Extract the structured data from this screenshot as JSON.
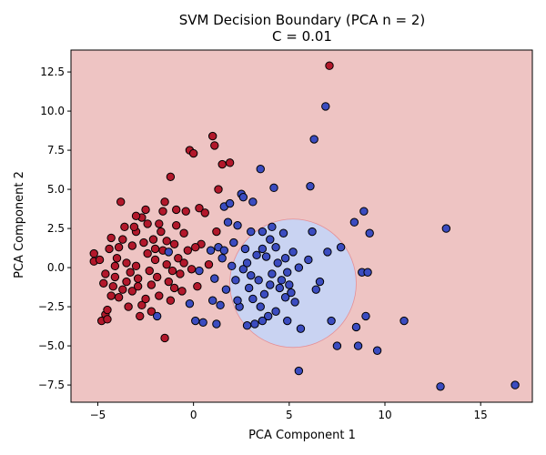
{
  "chart_data": {
    "type": "scatter",
    "title": [
      "SVM Decision Boundary (PCA n = 2)",
      "C = 0.01"
    ],
    "xlabel": "PCA Component 1",
    "ylabel": "PCA Component 2",
    "xlim": [
      -6.4,
      17.7
    ],
    "ylim": [
      -8.6,
      13.9
    ],
    "xticks": [
      -5,
      0,
      5,
      10,
      15
    ],
    "yticks": [
      -7.5,
      -5.0,
      -2.5,
      0.0,
      2.5,
      5.0,
      7.5,
      10.0,
      12.5
    ],
    "xtick_labels": [
      "−5",
      "0",
      "5",
      "10",
      "15"
    ],
    "ytick_labels": [
      "−7.5",
      "−5.0",
      "−2.5",
      "0.0",
      "2.5",
      "5.0",
      "7.5",
      "10.0",
      "12.5"
    ],
    "grid": false,
    "regions": [
      {
        "class": 0,
        "color": "#eec4c3",
        "extent": "background"
      },
      {
        "class": 1,
        "color": "#c9d3f2",
        "shape": "ellipse",
        "center": [
          5.2,
          -1.0
        ],
        "radius_x": 3.3,
        "radius_y": 4.1
      }
    ],
    "series": [
      {
        "class": 0,
        "color": "#b2182b",
        "edgecolor": "#000000",
        "points": [
          [
            -5.2,
            0.9
          ],
          [
            -5.2,
            0.4
          ],
          [
            -4.8,
            -3.4
          ],
          [
            -4.6,
            -3.0
          ],
          [
            -4.5,
            -3.3
          ],
          [
            -4.5,
            -2.7
          ],
          [
            -4.3,
            -1.8
          ],
          [
            -4.2,
            -1.2
          ],
          [
            -4.6,
            -0.4
          ],
          [
            -4.9,
            0.5
          ],
          [
            -4.0,
            0.6
          ],
          [
            -4.4,
            1.2
          ],
          [
            -4.1,
            -0.6
          ],
          [
            -3.9,
            -1.9
          ],
          [
            -4.3,
            1.9
          ],
          [
            -3.7,
            1.8
          ],
          [
            -3.6,
            2.6
          ],
          [
            -3.5,
            0.3
          ],
          [
            -3.5,
            -0.9
          ],
          [
            -3.4,
            -2.5
          ],
          [
            -3.2,
            -1.5
          ],
          [
            -3.9,
            1.3
          ],
          [
            -3.8,
            4.2
          ],
          [
            -3.2,
            1.4
          ],
          [
            -3.0,
            2.3
          ],
          [
            -3.0,
            0.1
          ],
          [
            -2.9,
            -1.2
          ],
          [
            -2.7,
            -2.4
          ],
          [
            -2.7,
            3.2
          ],
          [
            -2.5,
            3.7
          ],
          [
            -2.4,
            2.8
          ],
          [
            -2.4,
            0.9
          ],
          [
            -2.3,
            -0.2
          ],
          [
            -2.2,
            -1.1
          ],
          [
            -2.8,
            -3.1
          ],
          [
            -2.5,
            -2.0
          ],
          [
            -2.1,
            1.8
          ],
          [
            -2.0,
            0.5
          ],
          [
            -1.9,
            -0.6
          ],
          [
            -1.8,
            -1.8
          ],
          [
            -1.7,
            2.3
          ],
          [
            -1.6,
            1.1
          ],
          [
            -1.6,
            3.6
          ],
          [
            -1.5,
            4.2
          ],
          [
            -1.4,
            0.2
          ],
          [
            -1.3,
            -0.9
          ],
          [
            -1.2,
            -2.1
          ],
          [
            -1.5,
            -4.5
          ],
          [
            -1.2,
            5.8
          ],
          [
            -1.0,
            1.5
          ],
          [
            -0.9,
            2.7
          ],
          [
            -0.9,
            3.7
          ],
          [
            -0.8,
            0.6
          ],
          [
            -0.7,
            -0.4
          ],
          [
            -0.6,
            -1.5
          ],
          [
            -0.5,
            2.2
          ],
          [
            -0.4,
            3.6
          ],
          [
            -0.3,
            1.1
          ],
          [
            -0.2,
            7.5
          ],
          [
            0.0,
            7.3
          ],
          [
            -0.1,
            -0.1
          ],
          [
            0.2,
            -1.2
          ],
          [
            0.3,
            3.8
          ],
          [
            0.4,
            1.5
          ],
          [
            0.6,
            3.5
          ],
          [
            0.8,
            0.2
          ],
          [
            1.0,
            8.4
          ],
          [
            1.1,
            7.8
          ],
          [
            1.2,
            2.3
          ],
          [
            1.3,
            5.0
          ],
          [
            1.5,
            6.6
          ],
          [
            1.9,
            6.7
          ],
          [
            -4.1,
            0.1
          ],
          [
            -3.3,
            -0.3
          ],
          [
            -2.6,
            1.6
          ],
          [
            -1.8,
            2.8
          ],
          [
            -1.1,
            -0.2
          ],
          [
            -3.0,
            3.3
          ],
          [
            -2.2,
            -2.8
          ],
          [
            -0.5,
            0.3
          ],
          [
            0.1,
            1.3
          ],
          [
            -3.7,
            -1.4
          ],
          [
            -2.0,
            1.2
          ],
          [
            -1.0,
            -1.3
          ],
          [
            -4.7,
            -1.0
          ],
          [
            -3.1,
            2.6
          ],
          [
            -2.9,
            -0.7
          ],
          [
            -1.4,
            1.7
          ],
          [
            7.1,
            12.9
          ]
        ]
      },
      {
        "class": 1,
        "color": "#3b4cc0",
        "edgecolor": "#000000",
        "points": [
          [
            -1.9,
            -3.1
          ],
          [
            -1.3,
            1.0
          ],
          [
            -0.2,
            -2.3
          ],
          [
            0.1,
            -3.4
          ],
          [
            0.3,
            -0.2
          ],
          [
            0.5,
            -3.5
          ],
          [
            0.9,
            1.1
          ],
          [
            1.0,
            -2.1
          ],
          [
            1.1,
            -0.7
          ],
          [
            1.2,
            -3.6
          ],
          [
            1.3,
            1.3
          ],
          [
            1.4,
            -2.4
          ],
          [
            1.6,
            3.9
          ],
          [
            1.6,
            1.1
          ],
          [
            1.7,
            -1.4
          ],
          [
            1.8,
            2.9
          ],
          [
            1.9,
            4.1
          ],
          [
            2.0,
            0.1
          ],
          [
            2.1,
            1.6
          ],
          [
            2.2,
            -0.8
          ],
          [
            2.3,
            2.7
          ],
          [
            2.4,
            -2.5
          ],
          [
            2.5,
            4.7
          ],
          [
            2.6,
            4.5
          ],
          [
            2.6,
            -0.1
          ],
          [
            2.7,
            1.2
          ],
          [
            2.8,
            0.3
          ],
          [
            2.8,
            -3.7
          ],
          [
            2.9,
            -1.3
          ],
          [
            3.0,
            2.3
          ],
          [
            3.1,
            4.2
          ],
          [
            3.1,
            -2.0
          ],
          [
            3.2,
            -3.6
          ],
          [
            3.3,
            0.8
          ],
          [
            3.4,
            -0.8
          ],
          [
            3.5,
            6.3
          ],
          [
            3.5,
            -2.5
          ],
          [
            3.6,
            2.3
          ],
          [
            3.6,
            1.2
          ],
          [
            3.7,
            -1.7
          ],
          [
            3.8,
            0.7
          ],
          [
            3.9,
            -3.1
          ],
          [
            4.0,
            -1.1
          ],
          [
            4.1,
            2.6
          ],
          [
            4.1,
            -0.4
          ],
          [
            4.2,
            5.1
          ],
          [
            4.3,
            1.3
          ],
          [
            4.3,
            -2.8
          ],
          [
            4.4,
            0.3
          ],
          [
            4.5,
            -1.3
          ],
          [
            4.6,
            -0.8
          ],
          [
            4.7,
            2.2
          ],
          [
            4.8,
            -1.9
          ],
          [
            4.9,
            -3.4
          ],
          [
            4.9,
            -0.3
          ],
          [
            5.0,
            -1.1
          ],
          [
            5.1,
            -1.6
          ],
          [
            5.2,
            1.0
          ],
          [
            5.5,
            0.0
          ],
          [
            5.6,
            -3.9
          ],
          [
            5.5,
            -6.6
          ],
          [
            6.0,
            0.5
          ],
          [
            6.1,
            5.2
          ],
          [
            6.2,
            2.3
          ],
          [
            6.3,
            8.2
          ],
          [
            6.4,
            -1.4
          ],
          [
            6.6,
            -0.9
          ],
          [
            6.9,
            10.3
          ],
          [
            7.0,
            1.0
          ],
          [
            7.2,
            -3.4
          ],
          [
            7.5,
            -5.0
          ],
          [
            7.7,
            1.3
          ],
          [
            8.4,
            2.9
          ],
          [
            8.5,
            -3.8
          ],
          [
            8.6,
            -5.0
          ],
          [
            8.8,
            -0.3
          ],
          [
            8.9,
            3.6
          ],
          [
            9.1,
            -0.3
          ],
          [
            9.2,
            2.2
          ],
          [
            9.0,
            -3.1
          ],
          [
            9.6,
            -5.3
          ],
          [
            11.0,
            -3.4
          ],
          [
            12.9,
            -7.6
          ],
          [
            13.2,
            2.5
          ],
          [
            16.8,
            -7.5
          ],
          [
            2.3,
            -2.1
          ],
          [
            3.0,
            -0.5
          ],
          [
            4.8,
            0.6
          ],
          [
            1.5,
            0.6
          ],
          [
            3.6,
            -3.4
          ],
          [
            5.3,
            -2.2
          ],
          [
            4.0,
            1.8
          ]
        ]
      }
    ]
  }
}
